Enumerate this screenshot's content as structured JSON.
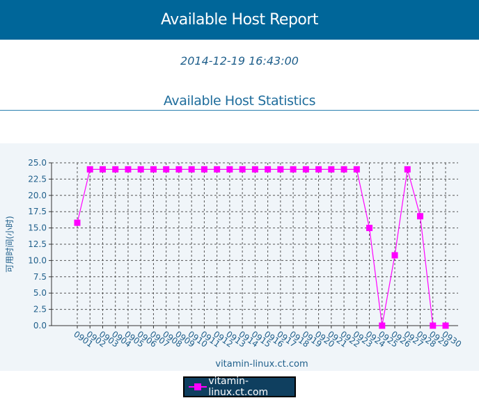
{
  "header": {
    "title": "Available Host Report"
  },
  "report": {
    "timestamp": "2014-12-19 16:43:00"
  },
  "section": {
    "title": "Available Host Statistics"
  },
  "legend": {
    "label": "vitamin-linux.ct.com"
  },
  "colors": {
    "header_bg": "#006699",
    "series": "#ff00ff",
    "legend_bg": "#0f3f5f",
    "plot_bg": "#f0f5f9"
  },
  "chart_data": {
    "type": "line",
    "xlabel": "vitamin-linux.ct.com",
    "ylabel": "可用时间(小时)",
    "ylim": [
      0,
      25
    ],
    "y_ticks": [
      "0.0",
      "2.5",
      "5.0",
      "7.5",
      "10.0",
      "12.5",
      "15.0",
      "17.5",
      "20.0",
      "22.5",
      "25.0"
    ],
    "grid": true,
    "legend_position": "bottom-center",
    "categories": [
      "0901",
      "0902",
      "0903",
      "0904",
      "0905",
      "0906",
      "0907",
      "0908",
      "0909",
      "0910",
      "0911",
      "0912",
      "0913",
      "0914",
      "0915",
      "0916",
      "0917",
      "0918",
      "0919",
      "0920",
      "0921",
      "0922",
      "0923",
      "0924",
      "0925",
      "0926",
      "0927",
      "0928",
      "0929",
      "0930"
    ],
    "series": [
      {
        "name": "vitamin-linux.ct.com",
        "marker": "square",
        "values": [
          15.8,
          24,
          24,
          24,
          24,
          24,
          24,
          24,
          24,
          24,
          24,
          24,
          24,
          24,
          24,
          24,
          24,
          24,
          24,
          24,
          24,
          24,
          24,
          15,
          0,
          10.8,
          24,
          16.8,
          0,
          0
        ]
      }
    ]
  }
}
